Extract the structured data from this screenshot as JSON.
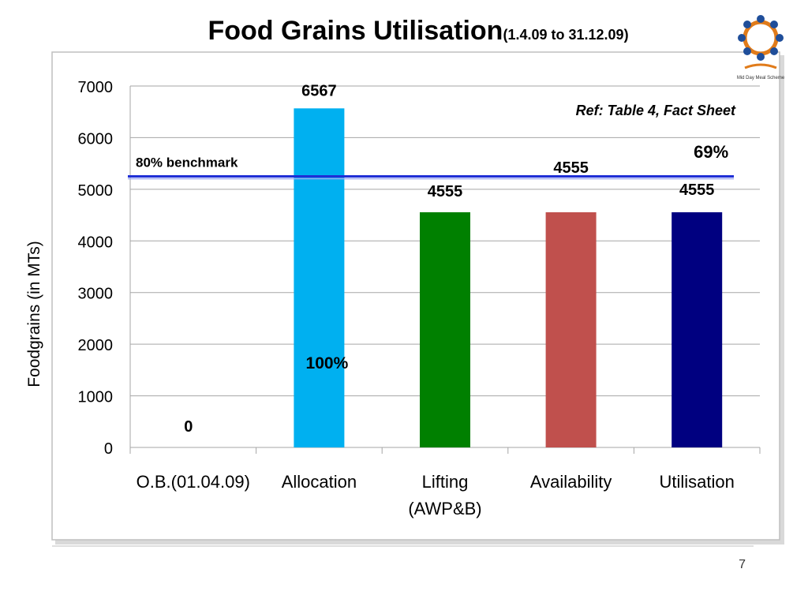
{
  "chart_data": {
    "type": "bar",
    "title": "Food Grains Utilisation",
    "subtitle": "(1.4.09 to 31.12.09)",
    "y_label": "Foodgrains (in MTs)",
    "categories": [
      "O.B.(01.04.09)",
      "Allocation",
      "Lifting (AWP&B)",
      "Availability",
      "Utilisation"
    ],
    "values": [
      0,
      6567,
      4555,
      4555,
      4555
    ],
    "colors": [
      "#00b0f0",
      "#00b0f0",
      "#008000",
      "#c0504d",
      "#000080"
    ],
    "ylim": [
      0,
      7000
    ],
    "yticks": [
      0,
      1000,
      2000,
      3000,
      4000,
      5000,
      6000,
      7000
    ],
    "grid": true,
    "benchmark": {
      "label": "80% benchmark",
      "value": 5250,
      "color": "#1f2fd6"
    },
    "annotations": [
      "Ref: Table 4, Fact Sheet",
      "100%",
      "69%"
    ]
  },
  "logo_text": "Mid Day Meal Scheme",
  "page_number": "7"
}
